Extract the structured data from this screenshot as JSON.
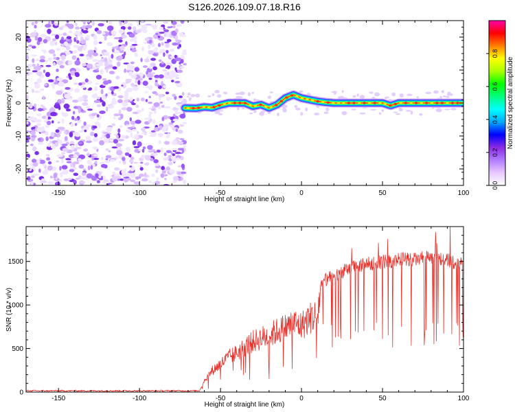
{
  "title": "S126.2026.109.07.18.R16",
  "chart_data": [
    {
      "type": "heatmap",
      "panel": "spectrogram",
      "xlabel": "Height of straight line (km)",
      "ylabel": "Frequency (Hz)",
      "xlim": [
        -170,
        100
      ],
      "ylim": [
        -25,
        25
      ],
      "xticks": [
        -150,
        -100,
        -50,
        0,
        50,
        100
      ],
      "yticks": [
        -20,
        -10,
        0,
        10,
        20
      ],
      "noise_region_x": [
        -170,
        -72
      ],
      "ridge": {
        "x": [
          -72,
          -65,
          -60,
          -55,
          -50,
          -45,
          -40,
          -35,
          -30,
          -25,
          -20,
          -15,
          -10,
          -5,
          0,
          5,
          10,
          15,
          20,
          30,
          40,
          50,
          55,
          60,
          70,
          80,
          90,
          99
        ],
        "y": [
          -1.5,
          -1.6,
          -1.2,
          -1.4,
          -0.6,
          0,
          0,
          0,
          -1,
          -0.5,
          -1.5,
          -0.5,
          1.5,
          2.5,
          1.5,
          1.0,
          0.5,
          0.2,
          0,
          0,
          0,
          0,
          -0.8,
          0,
          0,
          0,
          0,
          0
        ]
      },
      "colorbar": {
        "label": "Normalized spectral amplitude",
        "ticks": [
          0.0,
          0.2,
          0.4,
          0.6,
          0.8
        ],
        "range": [
          0,
          1
        ],
        "colors": [
          "#ffffff",
          "#e8c8ff",
          "#b07cff",
          "#8a2be2",
          "#0000ff",
          "#00aaff",
          "#00ffff",
          "#00ff80",
          "#00ff00",
          "#aaff00",
          "#ffff00",
          "#ff8000",
          "#ff0000",
          "#ff00aa"
        ]
      }
    },
    {
      "type": "line",
      "panel": "snr",
      "xlabel": "Height of straight line (km)",
      "ylabel": "SNR (10 * v/v)",
      "xlim": [
        -170,
        100
      ],
      "ylim": [
        0,
        1900
      ],
      "xticks": [
        -150,
        -100,
        -50,
        0,
        50,
        100
      ],
      "yticks": [
        0,
        500,
        1000,
        1500
      ],
      "line_color": "#e8302a",
      "series": [
        {
          "name": "SNR",
          "x": [
            -170,
            -150,
            -120,
            -100,
            -80,
            -63,
            -60,
            -55,
            -50,
            -45,
            -40,
            -35,
            -30,
            -25,
            -20,
            -15,
            -10,
            -5,
            0,
            5,
            10,
            12,
            15,
            20,
            25,
            30,
            35,
            40,
            45,
            50,
            55,
            60,
            65,
            70,
            75,
            80,
            85,
            90,
            95,
            100
          ],
          "y": [
            15,
            15,
            15,
            15,
            15,
            15,
            130,
            250,
            320,
            400,
            450,
            520,
            580,
            620,
            650,
            700,
            740,
            790,
            760,
            850,
            880,
            1250,
            1290,
            1320,
            1380,
            1420,
            1450,
            1470,
            1480,
            1500,
            1500,
            1520,
            1530,
            1520,
            1540,
            1560,
            1530,
            1520,
            1480,
            1500
          ]
        }
      ]
    }
  ]
}
